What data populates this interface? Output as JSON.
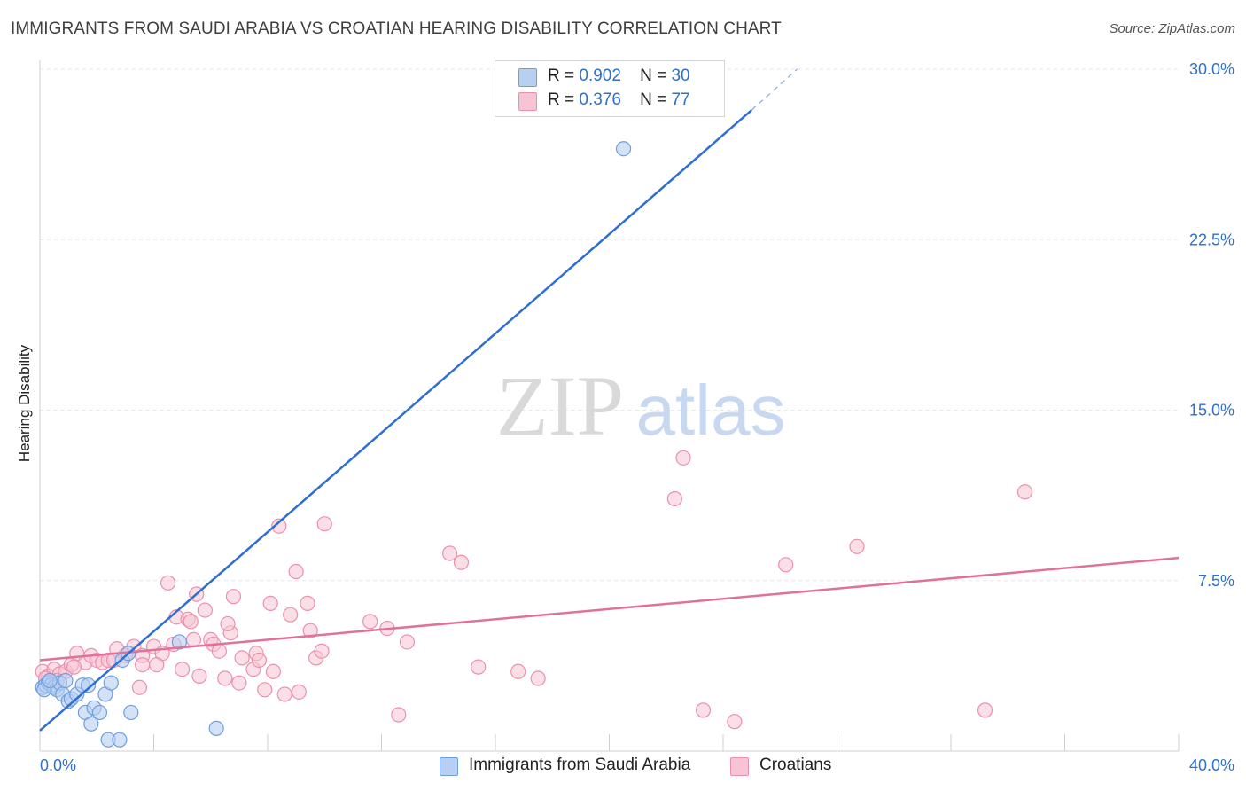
{
  "title": "IMMIGRANTS FROM SAUDI ARABIA VS CROATIAN HEARING DISABILITY CORRELATION CHART",
  "source": "Source: ZipAtlas.com",
  "watermark": {
    "zip": "ZIP",
    "atlas": "atlas"
  },
  "legend": {
    "r_label": "R =",
    "n_label": "N =",
    "rows": [
      {
        "r": "0.902",
        "n": "30"
      },
      {
        "r": "0.376",
        "n": "77"
      }
    ]
  },
  "colors": {
    "blue_fill": "#b7cff2",
    "blue_stroke": "#6e9ee0",
    "blue_line": "#2f6fd0",
    "pink_fill": "#f7c4d4",
    "pink_stroke": "#ec8fae",
    "pink_line": "#e0719b",
    "grid": "#e6e6e6",
    "axis_text": "#2f6fd0"
  },
  "chart_data": {
    "type": "scatter",
    "ylabel": "Hearing Disability",
    "xlabel": "",
    "xlim": [
      0,
      40
    ],
    "ylim": [
      0,
      30
    ],
    "x_ticks": [
      "0.0%",
      "40.0%"
    ],
    "y_ticks": [
      {
        "value": 7.5,
        "label": "7.5%"
      },
      {
        "value": 15.0,
        "label": "15.0%"
      },
      {
        "value": 22.5,
        "label": "22.5%"
      },
      {
        "value": 30.0,
        "label": "30.0%"
      }
    ],
    "grid": true,
    "legend_position": "top-center",
    "series": [
      {
        "name": "Immigrants from Saudi Arabia",
        "color": "blue",
        "trend": {
          "x": [
            0,
            25.0,
            26.6
          ],
          "y": [
            0.9,
            28.2,
            30.0
          ],
          "solid_until": 25.0
        },
        "points": [
          [
            0.1,
            2.8
          ],
          [
            0.2,
            2.9
          ],
          [
            0.3,
            3.0
          ],
          [
            0.4,
            2.9
          ],
          [
            0.5,
            2.8
          ],
          [
            0.6,
            2.7
          ],
          [
            0.7,
            3.0
          ],
          [
            0.8,
            2.5
          ],
          [
            0.9,
            3.1
          ],
          [
            1.0,
            2.2
          ],
          [
            1.1,
            2.3
          ],
          [
            1.3,
            2.5
          ],
          [
            1.5,
            2.9
          ],
          [
            1.6,
            1.7
          ],
          [
            1.7,
            2.9
          ],
          [
            1.8,
            1.2
          ],
          [
            1.9,
            1.9
          ],
          [
            2.1,
            1.7
          ],
          [
            2.3,
            2.5
          ],
          [
            2.4,
            0.5
          ],
          [
            2.5,
            3.0
          ],
          [
            2.8,
            0.5
          ],
          [
            2.9,
            4.0
          ],
          [
            3.1,
            4.3
          ],
          [
            3.2,
            1.7
          ],
          [
            4.9,
            4.8
          ],
          [
            6.2,
            1.0
          ],
          [
            20.5,
            26.5
          ],
          [
            0.15,
            2.7
          ],
          [
            0.35,
            3.1
          ]
        ]
      },
      {
        "name": "Croatians",
        "color": "pink",
        "trend": {
          "x": [
            0,
            40
          ],
          "y": [
            4.0,
            8.5
          ]
        },
        "points": [
          [
            0.1,
            3.5
          ],
          [
            0.3,
            3.3
          ],
          [
            0.5,
            3.6
          ],
          [
            0.7,
            3.4
          ],
          [
            0.9,
            3.5
          ],
          [
            1.1,
            3.8
          ],
          [
            1.3,
            4.3
          ],
          [
            1.6,
            3.9
          ],
          [
            1.8,
            4.2
          ],
          [
            2.0,
            4.0
          ],
          [
            2.2,
            3.9
          ],
          [
            2.4,
            4.0
          ],
          [
            2.7,
            4.5
          ],
          [
            3.0,
            4.2
          ],
          [
            3.3,
            4.6
          ],
          [
            3.6,
            4.2
          ],
          [
            3.5,
            2.8
          ],
          [
            3.6,
            3.8
          ],
          [
            4.0,
            4.6
          ],
          [
            4.3,
            4.3
          ],
          [
            4.5,
            7.4
          ],
          [
            4.7,
            4.7
          ],
          [
            4.8,
            5.9
          ],
          [
            5.0,
            3.6
          ],
          [
            5.2,
            5.8
          ],
          [
            5.3,
            5.7
          ],
          [
            5.5,
            6.9
          ],
          [
            5.6,
            3.3
          ],
          [
            5.8,
            6.2
          ],
          [
            6.0,
            4.9
          ],
          [
            6.1,
            4.7
          ],
          [
            6.3,
            4.4
          ],
          [
            6.5,
            3.2
          ],
          [
            6.7,
            5.2
          ],
          [
            6.8,
            6.8
          ],
          [
            7.0,
            3.0
          ],
          [
            7.1,
            4.1
          ],
          [
            7.5,
            3.6
          ],
          [
            7.6,
            4.3
          ],
          [
            7.7,
            4.0
          ],
          [
            7.9,
            2.7
          ],
          [
            8.1,
            6.5
          ],
          [
            8.2,
            3.5
          ],
          [
            8.4,
            9.9
          ],
          [
            8.6,
            2.5
          ],
          [
            8.8,
            6.0
          ],
          [
            9.0,
            7.9
          ],
          [
            9.1,
            2.6
          ],
          [
            9.4,
            6.5
          ],
          [
            9.5,
            5.3
          ],
          [
            9.7,
            4.1
          ],
          [
            9.9,
            4.4
          ],
          [
            10.0,
            10.0
          ],
          [
            11.6,
            5.7
          ],
          [
            12.2,
            5.4
          ],
          [
            12.6,
            1.6
          ],
          [
            12.9,
            4.8
          ],
          [
            14.4,
            8.7
          ],
          [
            14.8,
            8.3
          ],
          [
            15.4,
            3.7
          ],
          [
            16.8,
            3.5
          ],
          [
            17.5,
            3.2
          ],
          [
            22.3,
            11.1
          ],
          [
            22.6,
            12.9
          ],
          [
            23.3,
            1.8
          ],
          [
            24.4,
            1.3
          ],
          [
            26.2,
            8.2
          ],
          [
            28.7,
            9.0
          ],
          [
            33.2,
            1.8
          ],
          [
            34.6,
            11.4
          ],
          [
            0.2,
            3.2
          ],
          [
            0.6,
            3.1
          ],
          [
            1.2,
            3.7
          ],
          [
            2.6,
            4.0
          ],
          [
            4.1,
            3.8
          ],
          [
            6.6,
            5.6
          ],
          [
            5.4,
            4.9
          ]
        ]
      }
    ]
  }
}
